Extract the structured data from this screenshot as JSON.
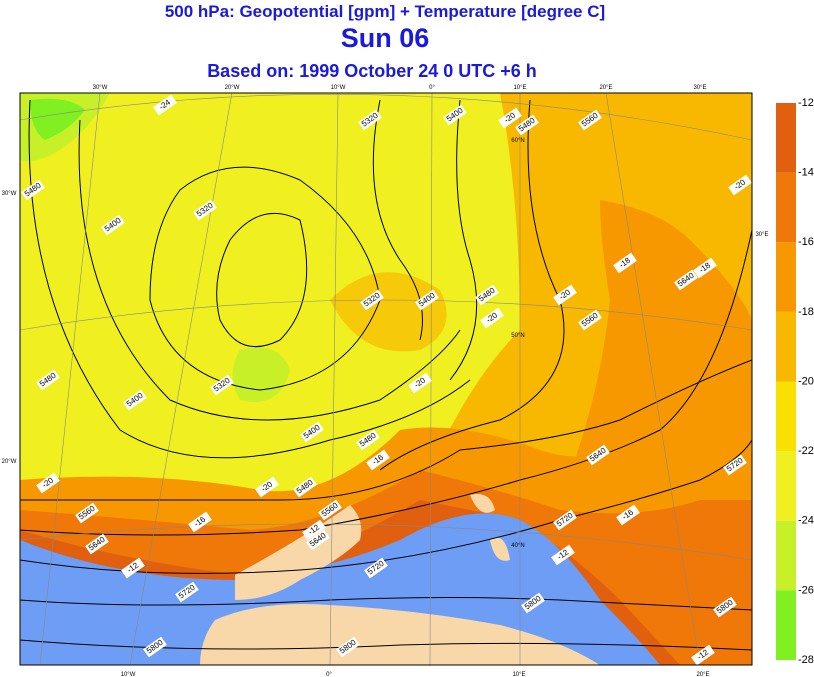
{
  "header": {
    "title": "500 hPa: Geopotential [gpm] + Temperature [degree C]",
    "day": "Sun 06",
    "based_on": "Based on: 1999 October 24   0 UTC  +6 h"
  },
  "colorbar": {
    "levels": [
      -12,
      -14,
      -16,
      -18,
      -20,
      -22,
      -24,
      -26,
      -28
    ],
    "colors": [
      "#e06010",
      "#f07808",
      "#f89800",
      "#f8b800",
      "#f8e000",
      "#f0f020",
      "#c8f028",
      "#80f020"
    ]
  },
  "contour_labels": [
    -24,
    5480,
    5400,
    5320,
    5320,
    5400,
    -20,
    5480,
    5560,
    -20,
    -18,
    -18,
    5640,
    -20,
    5560,
    5480,
    -20,
    5400,
    5320,
    5480,
    5400,
    5320,
    -20,
    5400,
    5480,
    -16,
    -20,
    5480,
    -20,
    5560,
    5560,
    -16,
    -12,
    5640,
    5640,
    -12,
    5720,
    5720,
    -16,
    -12,
    5640,
    5720,
    5720,
    5800,
    5800,
    5800,
    5800,
    -12
  ],
  "graticule_labels": [
    "30°W",
    "20°W",
    "10°W",
    "0°",
    "10°E",
    "20°E",
    "30°E",
    "30°W",
    "20°W",
    "30°E",
    "60°N",
    "50°N",
    "40°N",
    "10°W",
    "0°",
    "10°E",
    "20°E"
  ]
}
